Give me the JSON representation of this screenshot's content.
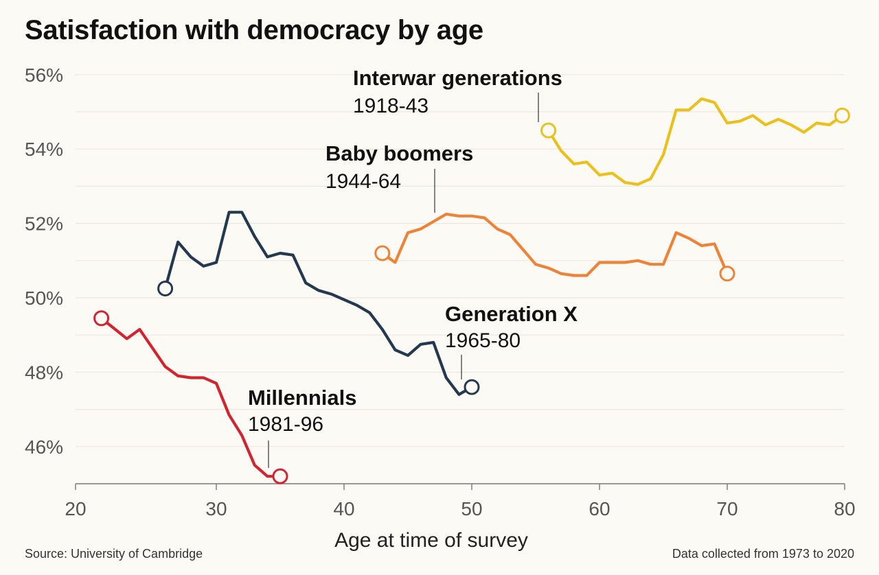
{
  "title": "Satisfaction with democracy by age",
  "source": "Source: University of Cambridge",
  "note": "Data collected from 1973 to 2020",
  "chart_data": {
    "type": "line",
    "title": "Satisfaction with democracy by age",
    "xlabel": "Age at time of survey",
    "ylabel": "",
    "xlim": [
      20,
      80
    ],
    "ylim": [
      45,
      56.5
    ],
    "xticks": [
      20,
      30,
      40,
      50,
      60,
      70,
      80
    ],
    "yticks": [
      46,
      48,
      50,
      52,
      54,
      56
    ],
    "ytick_labels": [
      "46%",
      "48%",
      "50%",
      "52%",
      "54%",
      "56%"
    ],
    "grid": "horizontal",
    "series": [
      {
        "name": "Millennials",
        "years": "1981-96",
        "color": "#d1242f",
        "points": [
          [
            21,
            49.45
          ],
          [
            23,
            48.9
          ],
          [
            24,
            49.15
          ],
          [
            25,
            48.65
          ],
          [
            26,
            48.15
          ],
          [
            27,
            47.9
          ],
          [
            28,
            47.85
          ],
          [
            29,
            47.85
          ],
          [
            30,
            47.7
          ],
          [
            31,
            46.85
          ],
          [
            32,
            46.3
          ],
          [
            33,
            45.5
          ],
          [
            34,
            45.2
          ],
          [
            35,
            45.2
          ]
        ]
      },
      {
        "name": "Generation X",
        "years": "1965-80",
        "color": "#22394f",
        "points": [
          [
            26,
            50.25
          ],
          [
            27,
            51.5
          ],
          [
            28,
            51.1
          ],
          [
            29,
            50.85
          ],
          [
            30,
            50.95
          ],
          [
            31,
            52.3
          ],
          [
            32,
            52.3
          ],
          [
            33,
            51.65
          ],
          [
            34,
            51.1
          ],
          [
            35,
            51.2
          ],
          [
            36,
            51.15
          ],
          [
            37,
            50.4
          ],
          [
            38,
            50.2
          ],
          [
            39,
            50.1
          ],
          [
            40,
            49.95
          ],
          [
            41,
            49.8
          ],
          [
            42,
            49.6
          ],
          [
            43,
            49.15
          ],
          [
            44,
            48.6
          ],
          [
            45,
            48.45
          ],
          [
            46,
            48.75
          ],
          [
            47,
            48.8
          ],
          [
            48,
            47.85
          ],
          [
            49,
            47.4
          ],
          [
            50,
            47.6
          ]
        ]
      },
      {
        "name": "Baby boomers",
        "years": "1944-64",
        "color": "#ee8337",
        "points": [
          [
            43,
            51.2
          ],
          [
            44,
            50.95
          ],
          [
            45,
            51.75
          ],
          [
            46,
            51.85
          ],
          [
            47,
            52.05
          ],
          [
            48,
            52.25
          ],
          [
            49,
            52.2
          ],
          [
            50,
            52.2
          ],
          [
            51,
            52.15
          ],
          [
            52,
            51.85
          ],
          [
            53,
            51.7
          ],
          [
            54,
            51.3
          ],
          [
            55,
            50.9
          ],
          [
            56,
            50.8
          ],
          [
            57,
            50.65
          ],
          [
            58,
            50.6
          ],
          [
            59,
            50.6
          ],
          [
            60,
            50.95
          ],
          [
            61,
            50.95
          ],
          [
            62,
            50.95
          ],
          [
            63,
            51.0
          ],
          [
            64,
            50.9
          ],
          [
            65,
            50.9
          ],
          [
            66,
            51.75
          ],
          [
            67,
            51.6
          ],
          [
            68,
            51.4
          ],
          [
            69,
            51.45
          ],
          [
            70,
            50.65
          ]
        ]
      },
      {
        "name": "Interwar generations",
        "years": "1918-43",
        "color": "#ebc01d",
        "points": [
          [
            56,
            54.5
          ],
          [
            57,
            53.95
          ],
          [
            58,
            53.6
          ],
          [
            59,
            53.65
          ],
          [
            60,
            53.3
          ],
          [
            61,
            53.35
          ],
          [
            62,
            53.1
          ],
          [
            63,
            53.05
          ],
          [
            64,
            53.2
          ],
          [
            65,
            53.85
          ],
          [
            66,
            55.05
          ],
          [
            67,
            55.05
          ],
          [
            68,
            55.35
          ],
          [
            69,
            55.25
          ],
          [
            70,
            54.7
          ],
          [
            71,
            54.75
          ],
          [
            72,
            54.9
          ],
          [
            73,
            54.65
          ],
          [
            74,
            54.8
          ],
          [
            75,
            54.65
          ],
          [
            76,
            54.45
          ],
          [
            77,
            54.7
          ],
          [
            78,
            54.65
          ],
          [
            79,
            54.9
          ]
        ]
      }
    ],
    "annotations": [
      {
        "name": "Interwar generations",
        "years": "1918-43"
      },
      {
        "name": "Baby boomers",
        "years": "1944-64"
      },
      {
        "name": "Generation X",
        "years": "1965-80"
      },
      {
        "name": "Millennials",
        "years": "1981-96"
      }
    ]
  }
}
